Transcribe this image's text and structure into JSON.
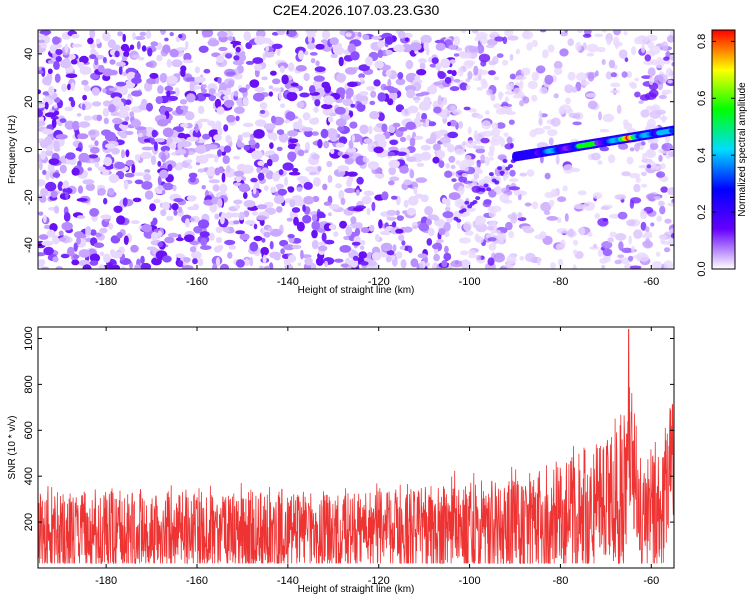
{
  "title": "C2E4.2026.107.03.23.G30",
  "chart_data": [
    {
      "type": "heatmap",
      "name": "spectrogram",
      "xlabel": "Height of straight line (km)",
      "ylabel": "Frequency (Hz)",
      "xlim": [
        -195,
        -55
      ],
      "ylim": [
        -50,
        50
      ],
      "xticks": [
        -180,
        -160,
        -140,
        -120,
        -100,
        -80,
        -60
      ],
      "yticks": [
        -40,
        -20,
        0,
        20,
        40
      ],
      "colorbar": {
        "label": "Normalized spectral amplitude",
        "range": [
          0.0,
          0.84
        ],
        "ticks": [
          0.0,
          0.2,
          0.4,
          0.6,
          0.8
        ],
        "colormap": [
          "#ffffff",
          "#6600ff",
          "#0000ff",
          "#00ddff",
          "#00ff00",
          "#ffff00",
          "#ff0000"
        ]
      },
      "signal_trace": {
        "description": "strong narrowband signal",
        "x_start": -90,
        "x_end": -55,
        "freq_start": -3,
        "freq_end": 8,
        "peak_x": -65,
        "peak_value": 0.84
      },
      "background_level": [
        0.0,
        0.15
      ]
    },
    {
      "type": "line",
      "name": "snr",
      "xlabel": "Height of straight line (km)",
      "ylabel": "SNR (10 * v/v)",
      "xlim": [
        -195,
        -55
      ],
      "ylim": [
        0,
        1050
      ],
      "xticks": [
        -180,
        -160,
        -140,
        -120,
        -100,
        -80,
        -60
      ],
      "yticks": [
        200,
        400,
        600,
        800,
        1000
      ],
      "color": "#ee3333",
      "envelope": {
        "x": [
          -195,
          -180,
          -160,
          -140,
          -120,
          -100,
          -90,
          -80,
          -75,
          -70,
          -66,
          -65,
          -64,
          -62,
          -60,
          -58,
          -56,
          -55
        ],
        "baseline": [
          150,
          150,
          150,
          150,
          150,
          160,
          170,
          200,
          230,
          240,
          300,
          600,
          500,
          200,
          250,
          220,
          400,
          500
        ],
        "spread": [
          220,
          230,
          220,
          220,
          230,
          250,
          280,
          320,
          360,
          380,
          500,
          450,
          400,
          300,
          350,
          330,
          420,
          380
        ]
      },
      "peak": {
        "x": -65,
        "y": 1040
      }
    }
  ]
}
